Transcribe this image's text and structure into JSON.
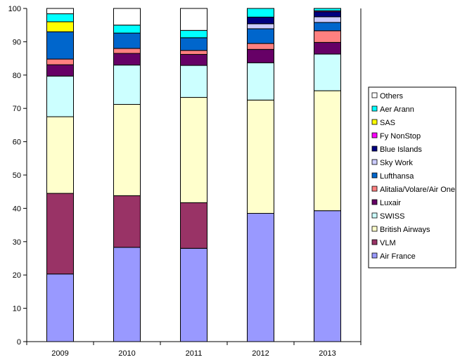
{
  "chart_data": {
    "type": "bar",
    "stacked": true,
    "categories": [
      "2009",
      "2010",
      "2011",
      "2012",
      "2013"
    ],
    "ylim": [
      0,
      100
    ],
    "yticks": [
      0,
      10,
      20,
      30,
      40,
      50,
      60,
      70,
      80,
      90,
      100
    ],
    "grid": false,
    "legend_position": "right",
    "series": [
      {
        "name": "Air France",
        "color": "#9999ff",
        "values": [
          20.3,
          28.3,
          28.0,
          38.5,
          39.3
        ]
      },
      {
        "name": "VLM",
        "color": "#993366",
        "values": [
          24.2,
          15.5,
          13.7,
          0,
          0
        ]
      },
      {
        "name": "British Airways",
        "color": "#ffffcc",
        "values": [
          23.0,
          27.4,
          31.6,
          34.0,
          36.0
        ]
      },
      {
        "name": "SWISS",
        "color": "#ccffff",
        "values": [
          12.2,
          11.8,
          9.6,
          11.2,
          11.0
        ]
      },
      {
        "name": "Luxair",
        "color": "#660066",
        "values": [
          3.4,
          3.5,
          3.3,
          4.0,
          3.5
        ]
      },
      {
        "name": "Alitalia/Volare/Air One",
        "color": "#ff8080",
        "values": [
          1.7,
          1.5,
          1.2,
          1.8,
          3.5
        ]
      },
      {
        "name": "Lufthansa",
        "color": "#0066cc",
        "values": [
          8.2,
          4.6,
          3.8,
          4.4,
          2.5
        ]
      },
      {
        "name": "Sky Work",
        "color": "#ccccff",
        "values": [
          0,
          0,
          0,
          1.5,
          1.7
        ]
      },
      {
        "name": "Blue Islands",
        "color": "#000080",
        "values": [
          0,
          0,
          0,
          2.0,
          1.5
        ]
      },
      {
        "name": "Fy NonStop",
        "color": "#ff00ff",
        "values": [
          0,
          0,
          0,
          0,
          0.3
        ]
      },
      {
        "name": "SAS",
        "color": "#ffff00",
        "values": [
          3.0,
          0,
          0,
          0,
          0
        ]
      },
      {
        "name": "Aer Arann",
        "color": "#00ffff",
        "values": [
          2.4,
          2.4,
          2.2,
          2.6,
          0.7
        ]
      },
      {
        "name": "Others",
        "color": "#ffffff",
        "values": [
          1.6,
          5.0,
          6.6,
          0,
          0
        ]
      }
    ],
    "legend_order": [
      "Others",
      "Aer Arann",
      "SAS",
      "Fy NonStop",
      "Blue Islands",
      "Sky Work",
      "Lufthansa",
      "Alitalia/Volare/Air One",
      "Luxair",
      "SWISS",
      "British Airways",
      "VLM",
      "Air France"
    ]
  }
}
